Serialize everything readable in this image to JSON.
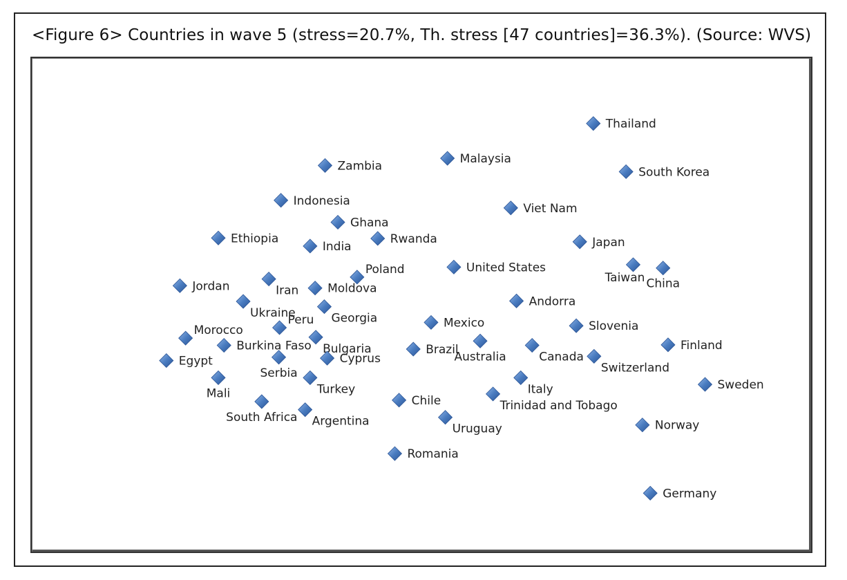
{
  "figure": {
    "caption": "<Figure 6> Countries in wave 5 (stress=20.7%, Th. stress [47 countries]=36.3%). (Source: WVS)"
  },
  "colors": {
    "marker": "#4a7cc0",
    "marker_light": "#8fb4e6",
    "marker_dark": "#2b5597",
    "label": "#222222"
  },
  "chart_data": {
    "type": "scatter",
    "title": "",
    "xlabel": "",
    "ylabel": "",
    "grid": false,
    "legend": "none",
    "marker": "diamond",
    "xlim": [
      0,
      100
    ],
    "ylim": [
      0,
      100
    ],
    "points": [
      {
        "label": "Thailand",
        "x": 72.7,
        "y": 88.6,
        "label_pos": "right"
      },
      {
        "label": "Malaysia",
        "x": 52.2,
        "y": 81.3,
        "label_pos": "right"
      },
      {
        "label": "Zambia",
        "x": 35.0,
        "y": 79.8,
        "label_pos": "right"
      },
      {
        "label": "South Korea",
        "x": 77.3,
        "y": 78.5,
        "label_pos": "right"
      },
      {
        "label": "Indonesia",
        "x": 28.8,
        "y": 72.5,
        "label_pos": "right"
      },
      {
        "label": "Viet Nam",
        "x": 61.1,
        "y": 70.9,
        "label_pos": "right"
      },
      {
        "label": "Ghana",
        "x": 36.8,
        "y": 67.9,
        "label_pos": "right"
      },
      {
        "label": "Ethiopia",
        "x": 20.0,
        "y": 64.6,
        "label_pos": "right"
      },
      {
        "label": "Rwanda",
        "x": 42.4,
        "y": 64.5,
        "label_pos": "right"
      },
      {
        "label": "India",
        "x": 32.9,
        "y": 62.9,
        "label_pos": "right"
      },
      {
        "label": "Japan",
        "x": 70.8,
        "y": 63.8,
        "label_pos": "right"
      },
      {
        "label": "Taiwan",
        "x": 78.3,
        "y": 59.0,
        "label_pos": "below-left"
      },
      {
        "label": "China",
        "x": 82.5,
        "y": 58.3,
        "label_pos": "below"
      },
      {
        "label": "United States",
        "x": 53.1,
        "y": 58.5,
        "label_pos": "right"
      },
      {
        "label": "Poland",
        "x": 39.5,
        "y": 56.4,
        "label_pos": "above-right"
      },
      {
        "label": "Jordan",
        "x": 14.6,
        "y": 54.6,
        "label_pos": "right"
      },
      {
        "label": "Iran",
        "x": 27.1,
        "y": 56.0,
        "label_pos": "below-right"
      },
      {
        "label": "Moldova",
        "x": 33.6,
        "y": 54.1,
        "label_pos": "right"
      },
      {
        "label": "Ukraine",
        "x": 23.5,
        "y": 51.3,
        "label_pos": "below-right"
      },
      {
        "label": "Andorra",
        "x": 61.9,
        "y": 51.4,
        "label_pos": "right"
      },
      {
        "label": "Georgia",
        "x": 34.9,
        "y": 50.2,
        "label_pos": "below-right"
      },
      {
        "label": "Mexico",
        "x": 49.9,
        "y": 46.9,
        "label_pos": "right"
      },
      {
        "label": "Slovenia",
        "x": 70.3,
        "y": 46.2,
        "label_pos": "right"
      },
      {
        "label": "Peru",
        "x": 28.6,
        "y": 45.8,
        "label_pos": "above-right"
      },
      {
        "label": "Morocco",
        "x": 15.4,
        "y": 43.6,
        "label_pos": "above-right"
      },
      {
        "label": "Bulgaria",
        "x": 33.7,
        "y": 43.8,
        "label_pos": "below-right"
      },
      {
        "label": "Burkina Faso",
        "x": 20.8,
        "y": 42.1,
        "label_pos": "right"
      },
      {
        "label": "Australia",
        "x": 56.8,
        "y": 43.0,
        "label_pos": "below"
      },
      {
        "label": "Canada",
        "x": 64.1,
        "y": 42.1,
        "label_pos": "below-right"
      },
      {
        "label": "Finland",
        "x": 83.2,
        "y": 42.2,
        "label_pos": "right"
      },
      {
        "label": "Brazil",
        "x": 47.4,
        "y": 41.3,
        "label_pos": "right"
      },
      {
        "label": "Switzerland",
        "x": 72.8,
        "y": 39.8,
        "label_pos": "below-right"
      },
      {
        "label": "Serbia",
        "x": 28.5,
        "y": 39.6,
        "label_pos": "below"
      },
      {
        "label": "Cyprus",
        "x": 35.3,
        "y": 39.4,
        "label_pos": "right"
      },
      {
        "label": "Egypt",
        "x": 12.7,
        "y": 38.9,
        "label_pos": "right"
      },
      {
        "label": "Mali",
        "x": 20.0,
        "y": 35.3,
        "label_pos": "below"
      },
      {
        "label": "Turkey",
        "x": 32.9,
        "y": 35.3,
        "label_pos": "below-right"
      },
      {
        "label": "Italy",
        "x": 62.5,
        "y": 35.3,
        "label_pos": "below-right"
      },
      {
        "label": "Sweden",
        "x": 88.4,
        "y": 33.9,
        "label_pos": "right"
      },
      {
        "label": "Trinidad and Tobago",
        "x": 58.6,
        "y": 31.9,
        "label_pos": "below-right"
      },
      {
        "label": "Chile",
        "x": 45.4,
        "y": 30.6,
        "label_pos": "right"
      },
      {
        "label": "South Africa",
        "x": 26.1,
        "y": 30.3,
        "label_pos": "below"
      },
      {
        "label": "Argentina",
        "x": 32.2,
        "y": 28.6,
        "label_pos": "below-right"
      },
      {
        "label": "Uruguay",
        "x": 51.9,
        "y": 27.0,
        "label_pos": "below-right"
      },
      {
        "label": "Norway",
        "x": 79.6,
        "y": 25.4,
        "label_pos": "right"
      },
      {
        "label": "Romania",
        "x": 44.8,
        "y": 19.4,
        "label_pos": "right"
      },
      {
        "label": "Germany",
        "x": 80.7,
        "y": 11.1,
        "label_pos": "right"
      }
    ]
  }
}
